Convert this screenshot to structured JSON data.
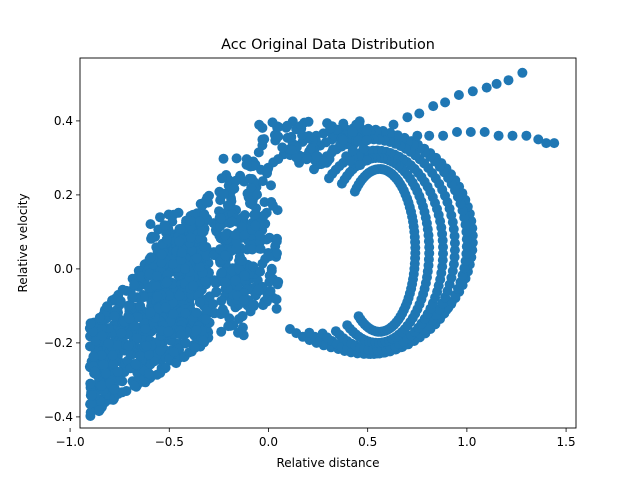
{
  "chart_data": {
    "type": "scatter",
    "title": "Acc Original Data Distribution",
    "xlabel": "Relative distance",
    "ylabel": "Relative velocity",
    "xlim": [
      -0.95,
      1.55
    ],
    "ylim": [
      -0.43,
      0.57
    ],
    "xticks": [
      -1.0,
      -0.5,
      0.0,
      0.5,
      1.0,
      1.5
    ],
    "xtick_labels": [
      "−1.0",
      "−0.5",
      "0.0",
      "0.5",
      "1.0",
      "1.5"
    ],
    "yticks": [
      -0.4,
      -0.2,
      0.0,
      0.2,
      0.4
    ],
    "ytick_labels": [
      "−0.4",
      "−0.2",
      "0.0",
      "0.2",
      "0.4"
    ],
    "grid": false,
    "marker_color": "#1f77b4",
    "series": [
      {
        "points_description": "dense band from (-0.9,-0.38) to (-0.45,0.15), arcs through (0,0.35),(0.4,0.3),(0.9,0.1),(1.0,-0.1),(0.6,-0.25), two tails to (1.28,0.53) and (1.44,0.34)",
        "band": {
          "x_start": -0.9,
          "x_end": -0.3,
          "y_low_start": -0.4,
          "y_high_start": -0.14,
          "y_low_end": -0.2,
          "y_high_end": 0.2
        },
        "rings": [
          {
            "cx": 0.45,
            "cy": 0.08,
            "rx": 0.58,
            "ry": 0.3
          },
          {
            "cx": 0.5,
            "cy": 0.07,
            "rx": 0.5,
            "ry": 0.3
          },
          {
            "cx": 0.52,
            "cy": 0.06,
            "rx": 0.42,
            "ry": 0.29
          },
          {
            "cx": 0.54,
            "cy": 0.05,
            "rx": 0.34,
            "ry": 0.27
          },
          {
            "cx": 0.55,
            "cy": 0.05,
            "rx": 0.26,
            "ry": 0.25
          },
          {
            "cx": 0.56,
            "cy": 0.05,
            "rx": 0.18,
            "ry": 0.22
          }
        ],
        "tail_upper": [
          [
            0.63,
            0.39
          ],
          [
            0.7,
            0.41
          ],
          [
            0.76,
            0.42
          ],
          [
            0.83,
            0.44
          ],
          [
            0.89,
            0.45
          ],
          [
            0.96,
            0.47
          ],
          [
            1.03,
            0.48
          ],
          [
            1.1,
            0.49
          ],
          [
            1.15,
            0.5
          ],
          [
            1.21,
            0.51
          ],
          [
            1.28,
            0.53
          ]
        ],
        "tail_lower": [
          [
            0.75,
            0.36
          ],
          [
            0.81,
            0.36
          ],
          [
            0.88,
            0.36
          ],
          [
            0.95,
            0.37
          ],
          [
            1.02,
            0.37
          ],
          [
            1.09,
            0.37
          ],
          [
            1.16,
            0.36
          ],
          [
            1.23,
            0.36
          ],
          [
            1.3,
            0.36
          ],
          [
            1.36,
            0.35
          ],
          [
            1.4,
            0.34
          ],
          [
            1.44,
            0.34
          ]
        ]
      }
    ]
  }
}
